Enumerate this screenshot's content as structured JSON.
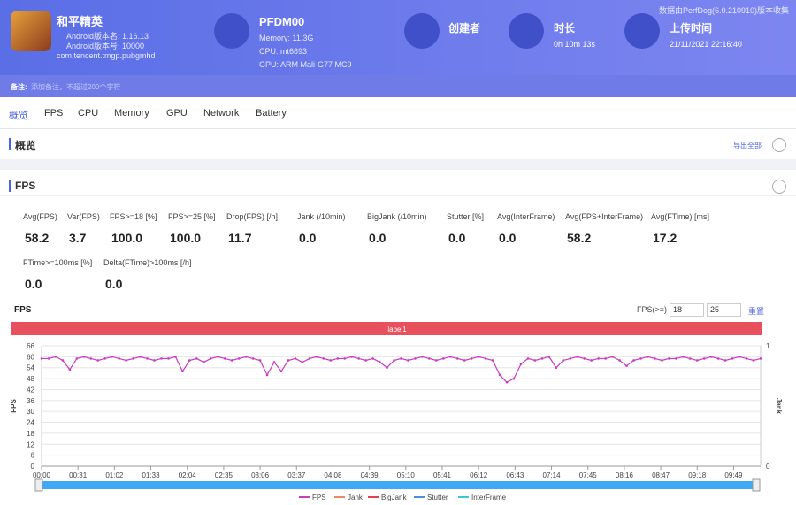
{
  "header": {
    "app_name": "和平精英",
    "version_name": "Android版本名: 1.16.13",
    "version_code": "Android版本号: 10000",
    "package": "com.tencent.tmgp.pubgmhd",
    "device": "PFDM00",
    "memory": "Memory: 11.3G",
    "cpu": "CPU: mt6893",
    "gpu": "GPU: ARM Mali-G77 MC9",
    "creator_label": "创建者",
    "duration_label": "时长",
    "duration": "0h 10m 13s",
    "upload_label": "上传时间",
    "upload_time": "21/11/2021 22:16:40",
    "collector": "数据由PerfDog(6.0.210910)版本收集",
    "note_label": "备注:",
    "note_placeholder": "添加备注，不超过200个字符"
  },
  "tabs": [
    "概览",
    "FPS",
    "CPU",
    "Memory",
    "GPU",
    "Network",
    "Battery"
  ],
  "overview": {
    "title": "概览",
    "export": "导出全部"
  },
  "fps_section": {
    "title": "FPS",
    "metrics": [
      {
        "label": "Avg(FPS)",
        "value": "58.2"
      },
      {
        "label": "Var(FPS)",
        "value": "3.7"
      },
      {
        "label": "FPS>=18 [%]",
        "value": "100.0"
      },
      {
        "label": "FPS>=25 [%]",
        "value": "100.0"
      },
      {
        "label": "Drop(FPS) [/h]",
        "value": "11.7"
      },
      {
        "label": "Jank (/10min)",
        "value": "0.0"
      },
      {
        "label": "BigJank (/10min)",
        "value": "0.0"
      },
      {
        "label": "Stutter [%]",
        "value": "0.0"
      },
      {
        "label": "Avg(InterFrame)",
        "value": "0.0"
      },
      {
        "label": "Avg(FPS+InterFrame)",
        "value": "58.2"
      },
      {
        "label": "Avg(FTime) [ms]",
        "value": "17.2"
      },
      {
        "label": "FTime>=100ms [%]",
        "value": "0.0"
      },
      {
        "label": "Delta(FTime)>100ms [/h]",
        "value": "0.0"
      }
    ],
    "threshold_label": "FPS(>=)",
    "threshold_low": "18",
    "threshold_high": "25",
    "reset": "重置"
  },
  "chart_data": {
    "type": "line",
    "title": "FPS",
    "band_label": "label1",
    "ylabel": "FPS",
    "y2label": "Jank",
    "x": [
      0,
      6,
      12,
      18,
      24,
      30,
      36,
      42,
      48,
      54,
      60,
      66,
      72,
      78,
      84,
      90,
      96,
      102,
      108,
      114,
      120,
      126,
      132,
      138,
      144,
      150,
      156,
      162,
      168,
      174,
      180,
      186,
      192,
      198,
      204,
      210,
      216,
      222,
      228,
      234,
      240,
      246,
      252,
      258,
      264,
      270,
      276,
      282,
      288,
      294,
      300,
      306,
      312,
      318,
      324,
      330,
      336,
      342,
      348,
      354,
      360,
      366,
      372,
      378,
      384,
      390,
      396,
      402,
      408,
      414,
      420,
      426,
      432,
      438,
      444,
      450,
      456,
      462,
      468,
      474,
      480,
      486,
      492,
      498,
      504,
      510,
      516,
      522,
      528,
      534,
      540,
      546,
      552,
      558,
      564,
      570,
      576,
      582,
      588,
      594,
      600,
      606,
      612
    ],
    "series": [
      {
        "name": "FPS",
        "color": "#c93cc2",
        "values": [
          59,
          59,
          60,
          58,
          53,
          59,
          60,
          59,
          58,
          59,
          60,
          59,
          58,
          59,
          60,
          59,
          58,
          59,
          59,
          60,
          52,
          58,
          59,
          57,
          59,
          60,
          59,
          58,
          59,
          60,
          59,
          58,
          50,
          57,
          52,
          58,
          59,
          57,
          59,
          60,
          59,
          58,
          59,
          59,
          60,
          59,
          58,
          59,
          57,
          54,
          58,
          59,
          58,
          59,
          60,
          59,
          58,
          59,
          60,
          59,
          58,
          59,
          60,
          59,
          58,
          50,
          46,
          48,
          56,
          59,
          58,
          59,
          60,
          54,
          58,
          59,
          60,
          59,
          58,
          59,
          59,
          60,
          58,
          55,
          58,
          59,
          60,
          59,
          58,
          59,
          59,
          60,
          59,
          58,
          59,
          60,
          59,
          58,
          59,
          60,
          59,
          58,
          59
        ]
      }
    ],
    "legend": [
      {
        "name": "FPS",
        "color": "#c93cc2"
      },
      {
        "name": "Jank",
        "color": "#f08a5d"
      },
      {
        "name": "BigJank",
        "color": "#e04050"
      },
      {
        "name": "Stutter",
        "color": "#4a90e2"
      },
      {
        "name": "InterFrame",
        "color": "#3cc8d0"
      }
    ],
    "xlim": [
      0,
      612
    ],
    "xticks": [
      {
        "value": 0,
        "label": "00:00"
      },
      {
        "value": 31,
        "label": "00:31"
      },
      {
        "value": 62,
        "label": "01:02"
      },
      {
        "value": 93,
        "label": "01:33"
      },
      {
        "value": 124,
        "label": "02:04"
      },
      {
        "value": 155,
        "label": "02:35"
      },
      {
        "value": 186,
        "label": "03:06"
      },
      {
        "value": 217,
        "label": "03:37"
      },
      {
        "value": 248,
        "label": "04:08"
      },
      {
        "value": 279,
        "label": "04:39"
      },
      {
        "value": 310,
        "label": "05:10"
      },
      {
        "value": 341,
        "label": "05:41"
      },
      {
        "value": 372,
        "label": "06:12"
      },
      {
        "value": 403,
        "label": "06:43"
      },
      {
        "value": 434,
        "label": "07:14"
      },
      {
        "value": 465,
        "label": "07:45"
      },
      {
        "value": 496,
        "label": "08:16"
      },
      {
        "value": 527,
        "label": "08:47"
      },
      {
        "value": 558,
        "label": "09:18"
      },
      {
        "value": 589,
        "label": "09:49"
      }
    ],
    "ylim": [
      0,
      66
    ],
    "yticks": [
      0,
      6,
      12,
      18,
      24,
      30,
      36,
      42,
      48,
      54,
      60,
      66
    ],
    "y2lim": [
      0,
      1
    ],
    "y2ticks": [
      0,
      1
    ],
    "grid": true
  }
}
